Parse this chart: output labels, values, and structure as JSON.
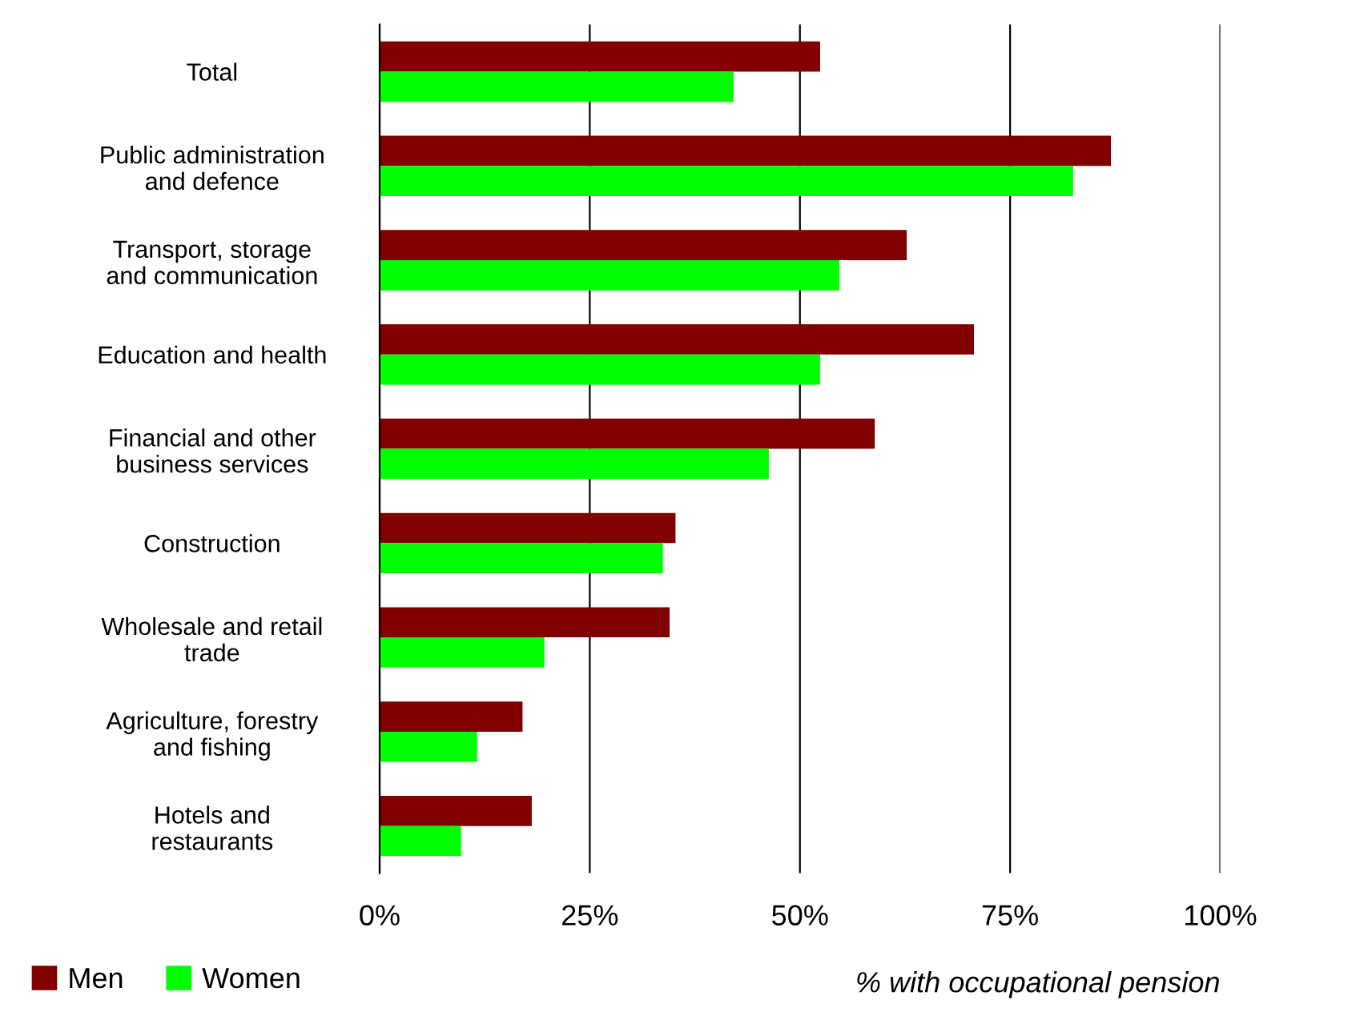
{
  "chart_data": {
    "type": "bar",
    "orientation": "horizontal",
    "categories": [
      "Total",
      "Public administration\nand defence",
      "Transport, storage\nand communication",
      "Education and health",
      "Financial and other\nbusiness services",
      "Construction",
      "Wholesale and retail\ntrade",
      "Agriculture, forestry\nand fishing",
      "Hotels and\nrestaurants"
    ],
    "series": [
      {
        "name": "Men",
        "color": "#800000",
        "values": [
          52.4,
          87.0,
          62.7,
          70.7,
          58.9,
          35.2,
          34.5,
          17.0,
          18.1
        ]
      },
      {
        "name": "Women",
        "color": "#00ff00",
        "values": [
          42.1,
          82.5,
          54.7,
          52.4,
          46.3,
          33.7,
          19.6,
          11.6,
          9.7
        ]
      }
    ],
    "xlim": [
      0,
      100
    ],
    "xticks": [
      {
        "value": 0,
        "label": "0%"
      },
      {
        "value": 25,
        "label": "25%"
      },
      {
        "value": 50,
        "label": "50%"
      },
      {
        "value": 75,
        "label": "75%"
      },
      {
        "value": 100,
        "label": "100%"
      }
    ],
    "xlabel": "% with occupational pension",
    "grid": "x",
    "legend": "bottom left"
  }
}
